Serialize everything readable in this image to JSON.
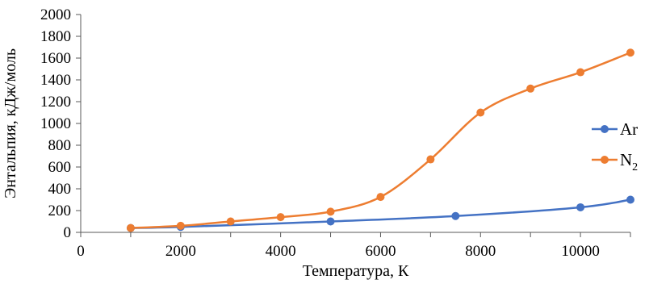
{
  "chart_data": {
    "type": "line",
    "xlabel": "Температура, К",
    "ylabel": "Энтальпия, кДж/моль",
    "xlim": [
      0,
      11000
    ],
    "ylim": [
      0,
      2000
    ],
    "x_ticks": [
      "0",
      "2000",
      "4000",
      "6000",
      "8000",
      "10000"
    ],
    "x_tick_values": [
      0,
      2000,
      4000,
      6000,
      8000,
      10000
    ],
    "y_ticks": [
      "0",
      "200",
      "400",
      "600",
      "800",
      "1000",
      "1200",
      "1400",
      "1600",
      "1800",
      "2000"
    ],
    "y_tick_values": [
      0,
      200,
      400,
      600,
      800,
      1000,
      1200,
      1400,
      1600,
      1800,
      2000
    ],
    "grid": false,
    "legend_position": "right",
    "series": [
      {
        "name": "Ar",
        "name_base": "Ar",
        "name_sub": "",
        "color": "#4472C4",
        "marker": "circle",
        "x": [
          1000,
          2000,
          5000,
          7500,
          10000,
          11000
        ],
        "y": [
          40,
          50,
          100,
          150,
          230,
          300
        ]
      },
      {
        "name": "N2",
        "name_base": "N",
        "name_sub": "2",
        "color": "#ED7D31",
        "marker": "circle",
        "x": [
          1000,
          2000,
          3000,
          4000,
          5000,
          6000,
          7000,
          8000,
          9000,
          10000,
          11000
        ],
        "y": [
          40,
          60,
          100,
          140,
          190,
          325,
          670,
          1100,
          1320,
          1470,
          1650
        ]
      }
    ]
  }
}
